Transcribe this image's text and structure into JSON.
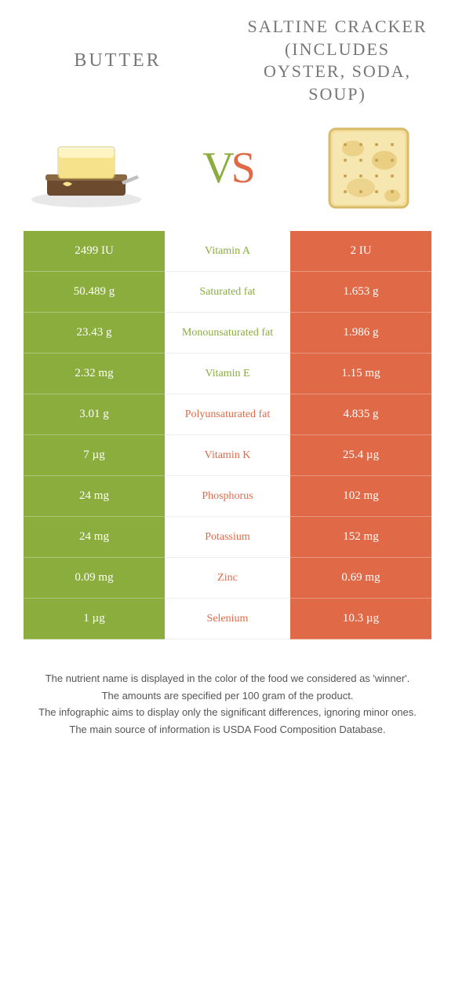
{
  "colors": {
    "left_bg": "#8aad3e",
    "right_bg": "#e06a48",
    "left_text": "#8aad3e",
    "right_text": "#e06a48"
  },
  "header": {
    "left_title": "BUTTER",
    "right_title": "SALTINE CRACKER (INCLUDES OYSTER, SODA, SOUP)",
    "vs_v": "V",
    "vs_s": "S"
  },
  "rows": [
    {
      "left": "2499 IU",
      "label": "Vitamin A",
      "right": "2 IU",
      "winner": "left"
    },
    {
      "left": "50.489 g",
      "label": "Saturated fat",
      "right": "1.653 g",
      "winner": "left"
    },
    {
      "left": "23.43 g",
      "label": "Monounsaturated fat",
      "right": "1.986 g",
      "winner": "left"
    },
    {
      "left": "2.32 mg",
      "label": "Vitamin E",
      "right": "1.15 mg",
      "winner": "left"
    },
    {
      "left": "3.01 g",
      "label": "Polyunsaturated fat",
      "right": "4.835 g",
      "winner": "right"
    },
    {
      "left": "7 µg",
      "label": "Vitamin K",
      "right": "25.4 µg",
      "winner": "right"
    },
    {
      "left": "24 mg",
      "label": "Phosphorus",
      "right": "102 mg",
      "winner": "right"
    },
    {
      "left": "24 mg",
      "label": "Potassium",
      "right": "152 mg",
      "winner": "right"
    },
    {
      "left": "0.09 mg",
      "label": "Zinc",
      "right": "0.69 mg",
      "winner": "right"
    },
    {
      "left": "1 µg",
      "label": "Selenium",
      "right": "10.3 µg",
      "winner": "right"
    }
  ],
  "footer": {
    "line1": "The nutrient name is displayed in the color of the food we considered as 'winner'.",
    "line2": "The amounts are specified per 100 gram of the product.",
    "line3": "The infographic aims to display only the significant differences, ignoring minor ones.",
    "line4": "The main source of information is USDA Food Composition Database."
  }
}
